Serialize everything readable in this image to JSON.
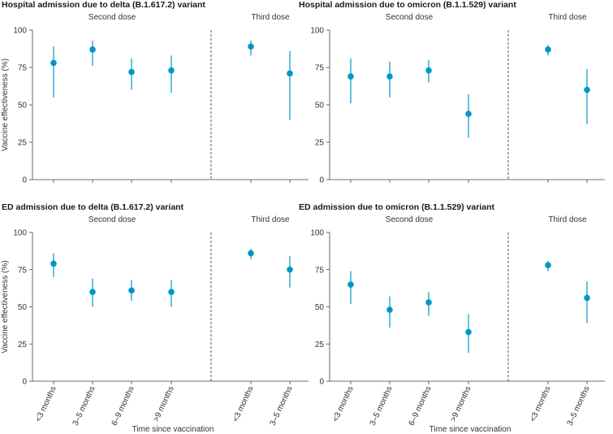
{
  "figure": {
    "ylabel": "Vaccine effectiveness  (%)",
    "xlabel": "Time since vaccination",
    "color": "#0097c4"
  },
  "chart_data": [
    {
      "type": "scatter",
      "title": "Hospital admission due to delta (B.1.617.2) variant",
      "sections": [
        "Second dose",
        "Third dose"
      ],
      "categories": [
        "<3 months",
        "3–5 months",
        "6–9 months",
        ">9 months",
        "<3 months",
        "3–5 months"
      ],
      "values": [
        78,
        87,
        72,
        73,
        89,
        71
      ],
      "lower": [
        55,
        76,
        60,
        58,
        83,
        40
      ],
      "upper": [
        89,
        93,
        81,
        83,
        93,
        86
      ],
      "ylim": [
        0,
        100
      ],
      "yticks": [
        0,
        25,
        50,
        75,
        100
      ],
      "ylabel": "Vaccine effectiveness  (%)",
      "xlabel": "",
      "show_xticklabels": false
    },
    {
      "type": "scatter",
      "title": "Hospital admission due to omicron (B.1.1.529) variant",
      "sections": [
        "Second dose",
        "Third dose"
      ],
      "categories": [
        "<3 months",
        "3–5 months",
        "6–9 months",
        ">9 months",
        "<3 months",
        "3–5 months"
      ],
      "values": [
        69,
        69,
        73,
        44,
        87,
        60
      ],
      "lower": [
        51,
        55,
        65,
        28,
        83,
        37
      ],
      "upper": [
        81,
        79,
        80,
        57,
        90,
        74
      ],
      "ylim": [
        0,
        100
      ],
      "yticks": [
        0,
        25,
        50,
        75,
        100
      ],
      "ylabel": "",
      "xlabel": "",
      "show_xticklabels": false
    },
    {
      "type": "scatter",
      "title": "ED admission due to delta (B.1.617.2) variant",
      "sections": [
        "Second dose",
        "Third dose"
      ],
      "categories": [
        "<3 months",
        "3–5 months",
        "6–9 months",
        ">9 months",
        "<3 months",
        "3–5 months"
      ],
      "values": [
        79,
        60,
        61,
        60,
        86,
        75
      ],
      "lower": [
        70,
        50,
        54,
        50,
        82,
        63
      ],
      "upper": [
        86,
        69,
        68,
        68,
        89,
        84
      ],
      "ylim": [
        0,
        100
      ],
      "yticks": [
        0,
        25,
        50,
        75,
        100
      ],
      "ylabel": "Vaccine effectiveness  (%)",
      "xlabel": "Time since vaccination",
      "show_xticklabels": true
    },
    {
      "type": "scatter",
      "title": "ED admission due to omicron (B.1.1.529) variant",
      "sections": [
        "Second dose",
        "Third dose"
      ],
      "categories": [
        "<3 months",
        "3–5 months",
        "6–9 months",
        ">9 months",
        "<3 months",
        "3–5 months"
      ],
      "values": [
        65,
        48,
        53,
        33,
        78,
        56
      ],
      "lower": [
        52,
        36,
        44,
        19,
        74,
        39
      ],
      "upper": [
        74,
        57,
        60,
        45,
        81,
        67
      ],
      "ylim": [
        0,
        100
      ],
      "yticks": [
        0,
        25,
        50,
        75,
        100
      ],
      "ylabel": "",
      "xlabel": "Time since vaccination",
      "show_xticklabels": true
    }
  ]
}
